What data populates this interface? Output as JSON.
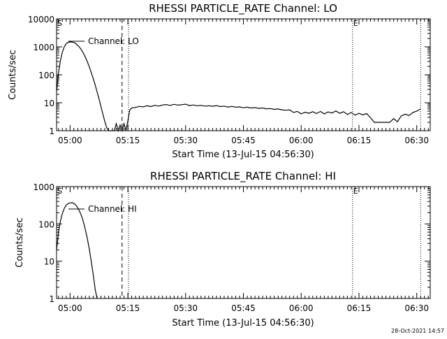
{
  "timestamp": "28-Oct-2021 14:57",
  "chart_data": [
    {
      "type": "line",
      "title": "RHESSI PARTICLE_RATE Channel: LO",
      "xlabel": "Start Time (13-Jul-15 04:56:30)",
      "ylabel": "Counts/sec",
      "yscale": "log",
      "ylim": [
        1,
        10000
      ],
      "xlim": [
        "04:56:30",
        "06:33:30"
      ],
      "grid": false,
      "x_ticks": [
        "05:00",
        "05:15",
        "05:30",
        "05:45",
        "06:00",
        "06:15",
        "06:30"
      ],
      "y_ticks": [
        "1",
        "10",
        "100",
        "1000",
        "10000"
      ],
      "legend": {
        "label": "Channel: LO",
        "placement": "top-left"
      },
      "markers": [
        {
          "label": "S",
          "time": "04:56:30",
          "style": "dotted"
        },
        {
          "label": "",
          "time": "05:13:30",
          "style": "dashed"
        },
        {
          "label": "",
          "time": "05:15:10",
          "style": "dotted"
        },
        {
          "label": "E",
          "time": "06:13:20",
          "style": "dotted"
        },
        {
          "label": "",
          "time": "06:31:00",
          "style": "dotted"
        }
      ],
      "series": [
        {
          "name": "Channel: LO",
          "points": [
            [
              "04:56:30",
              25
            ],
            [
              "04:57:00",
              120
            ],
            [
              "04:57:30",
              320
            ],
            [
              "04:58:00",
              650
            ],
            [
              "04:58:30",
              1000
            ],
            [
              "04:59:00",
              1300
            ],
            [
              "04:59:30",
              1450
            ],
            [
              "05:00:00",
              1500
            ],
            [
              "05:00:30",
              1480
            ],
            [
              "05:01:00",
              1430
            ],
            [
              "05:01:30",
              1300
            ],
            [
              "05:02:00",
              1130
            ],
            [
              "05:02:30",
              950
            ],
            [
              "05:03:00",
              760
            ],
            [
              "05:03:30",
              580
            ],
            [
              "05:04:00",
              420
            ],
            [
              "05:04:30",
              290
            ],
            [
              "05:05:00",
              190
            ],
            [
              "05:05:30",
              120
            ],
            [
              "05:06:00",
              74
            ],
            [
              "05:06:30",
              44
            ],
            [
              "05:07:00",
              25
            ],
            [
              "05:07:30",
              14
            ],
            [
              "05:08:00",
              7.5
            ],
            [
              "05:08:30",
              4
            ],
            [
              "05:09:00",
              2.2
            ],
            [
              "05:09:30",
              1.3
            ],
            [
              "05:10:00",
              1
            ],
            [
              "05:11:30",
              1
            ],
            [
              "05:12:00",
              1.8
            ],
            [
              "05:12:30",
              1
            ],
            [
              "05:13:00",
              1.6
            ],
            [
              "05:13:30",
              1
            ],
            [
              "05:14:00",
              1.8
            ],
            [
              "05:14:30",
              1
            ],
            [
              "05:15:00",
              2.2
            ],
            [
              "05:15:30",
              5.5
            ],
            [
              "05:16:00",
              6.5
            ],
            [
              "05:17:00",
              6.8
            ],
            [
              "05:18:00",
              7.4
            ],
            [
              "05:19:00",
              7.1
            ],
            [
              "05:20:00",
              7.8
            ],
            [
              "05:21:00",
              7.3
            ],
            [
              "05:22:00",
              8.1
            ],
            [
              "05:23:00",
              7.6
            ],
            [
              "05:24:00",
              8.3
            ],
            [
              "05:25:00",
              8.6
            ],
            [
              "05:26:00",
              8.0
            ],
            [
              "05:27:00",
              8.8
            ],
            [
              "05:28:00",
              8.2
            ],
            [
              "05:29:00",
              8.5
            ],
            [
              "05:30:00",
              8.9
            ],
            [
              "05:31:00",
              7.9
            ],
            [
              "05:32:00",
              8.3
            ],
            [
              "05:33:00",
              7.8
            ],
            [
              "05:34:00",
              8.1
            ],
            [
              "05:35:00",
              7.6
            ],
            [
              "05:36:00",
              7.8
            ],
            [
              "05:37:00",
              7.5
            ],
            [
              "05:38:00",
              7.9
            ],
            [
              "05:39:00",
              7.3
            ],
            [
              "05:40:00",
              7.6
            ],
            [
              "05:41:00",
              7.0
            ],
            [
              "05:42:00",
              7.4
            ],
            [
              "05:43:00",
              6.9
            ],
            [
              "05:44:00",
              7.1
            ],
            [
              "05:45:00",
              6.6
            ],
            [
              "05:46:00",
              6.9
            ],
            [
              "05:47:00",
              6.5
            ],
            [
              "05:48:00",
              6.7
            ],
            [
              "05:49:00",
              6.3
            ],
            [
              "05:50:00",
              6.5
            ],
            [
              "05:51:00",
              6.1
            ],
            [
              "05:52:00",
              6.2
            ],
            [
              "05:53:00",
              5.8
            ],
            [
              "05:54:00",
              6.0
            ],
            [
              "05:55:00",
              5.6
            ],
            [
              "05:56:00",
              5.4
            ],
            [
              "05:57:00",
              5.6
            ],
            [
              "05:58:00",
              4.5
            ],
            [
              "05:59:00",
              4.9
            ],
            [
              "06:00:00",
              4.0
            ],
            [
              "06:01:00",
              4.6
            ],
            [
              "06:02:00",
              4.2
            ],
            [
              "06:03:00",
              4.8
            ],
            [
              "06:04:00",
              4.1
            ],
            [
              "06:05:00",
              4.9
            ],
            [
              "06:06:00",
              4.0
            ],
            [
              "06:07:00",
              4.7
            ],
            [
              "06:08:00",
              4.3
            ],
            [
              "06:09:00",
              5.1
            ],
            [
              "06:10:00",
              4.2
            ],
            [
              "06:11:00",
              4.8
            ],
            [
              "06:12:00",
              3.8
            ],
            [
              "06:13:00",
              4.5
            ],
            [
              "06:14:00",
              3.6
            ],
            [
              "06:15:00",
              4.2
            ],
            [
              "06:16:00",
              3.7
            ],
            [
              "06:17:00",
              4.1
            ],
            [
              "06:18:00",
              2.9
            ],
            [
              "06:19:00",
              2.0
            ],
            [
              "06:20:00",
              2.0
            ],
            [
              "06:21:00",
              2.0
            ],
            [
              "06:22:00",
              2.0
            ],
            [
              "06:23:00",
              2.0
            ],
            [
              "06:24:00",
              2.7
            ],
            [
              "06:25:00",
              2.1
            ],
            [
              "06:26:00",
              3.4
            ],
            [
              "06:27:00",
              3.9
            ],
            [
              "06:28:00",
              3.5
            ],
            [
              "06:29:00",
              4.5
            ],
            [
              "06:30:00",
              5.0
            ],
            [
              "06:31:00",
              6.0
            ]
          ]
        }
      ]
    },
    {
      "type": "line",
      "title": "RHESSI PARTICLE_RATE Channel: HI",
      "xlabel": "Start Time (13-Jul-15 04:56:30)",
      "ylabel": "Counts/sec",
      "yscale": "log",
      "ylim": [
        1,
        1000
      ],
      "xlim": [
        "04:56:30",
        "06:33:30"
      ],
      "grid": false,
      "x_ticks": [
        "05:00",
        "05:15",
        "05:30",
        "05:45",
        "06:00",
        "06:15",
        "06:30"
      ],
      "y_ticks": [
        "1",
        "10",
        "100",
        "1000"
      ],
      "legend": {
        "label": "Channel: HI",
        "placement": "top-left"
      },
      "markers": [
        {
          "label": "S",
          "time": "04:56:30",
          "style": "dotted"
        },
        {
          "label": "",
          "time": "05:13:30",
          "style": "dashed"
        },
        {
          "label": "",
          "time": "05:15:10",
          "style": "dotted"
        },
        {
          "label": "E",
          "time": "06:13:20",
          "style": "dotted"
        },
        {
          "label": "",
          "time": "06:31:00",
          "style": "dotted"
        }
      ],
      "series": [
        {
          "name": "Channel: HI",
          "points": [
            [
              "04:56:30",
              20
            ],
            [
              "04:57:00",
              60
            ],
            [
              "04:57:30",
              120
            ],
            [
              "04:58:00",
              190
            ],
            [
              "04:58:30",
              260
            ],
            [
              "04:59:00",
              320
            ],
            [
              "04:59:30",
              350
            ],
            [
              "05:00:00",
              365
            ],
            [
              "05:00:30",
              370
            ],
            [
              "05:01:00",
              355
            ],
            [
              "05:01:30",
              320
            ],
            [
              "05:02:00",
              270
            ],
            [
              "05:02:30",
              215
            ],
            [
              "05:03:00",
              160
            ],
            [
              "05:03:30",
              110
            ],
            [
              "05:04:00",
              68
            ],
            [
              "05:04:30",
              40
            ],
            [
              "05:05:00",
              21
            ],
            [
              "05:05:30",
              10
            ],
            [
              "05:06:00",
              4.5
            ],
            [
              "05:06:30",
              1.8
            ],
            [
              "05:07:00",
              1
            ]
          ]
        }
      ]
    }
  ]
}
